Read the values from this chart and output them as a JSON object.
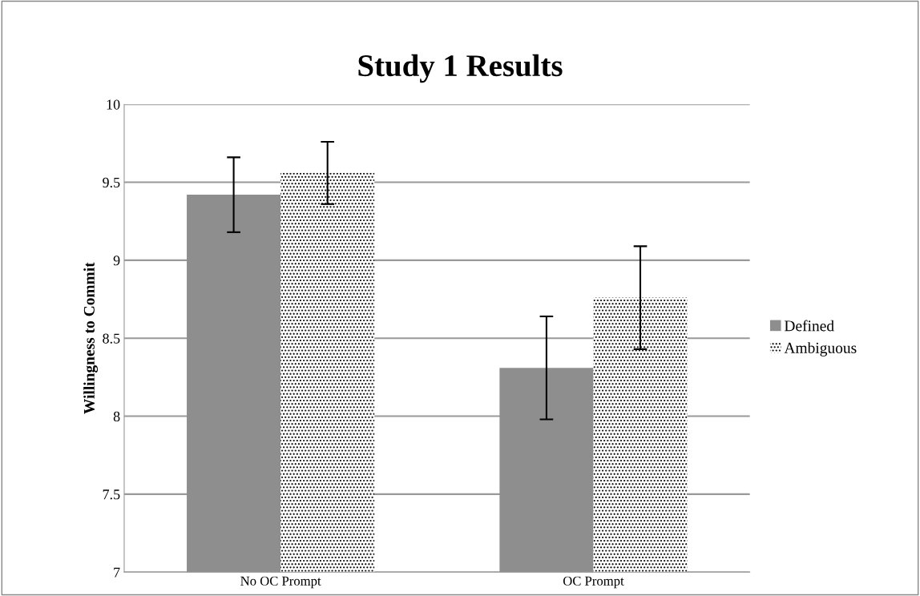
{
  "chart_data": {
    "type": "bar",
    "title": "Study 1 Results",
    "ylabel": "Willingness to Commit",
    "categories": [
      "No OC Prompt",
      "OC Prompt"
    ],
    "series": [
      {
        "name": "Defined",
        "color": "#8e8e8e",
        "values": [
          9.42,
          8.31
        ],
        "errors": [
          0.24,
          0.33
        ]
      },
      {
        "name": "Ambiguous",
        "color": "#ffffff",
        "values": [
          9.56,
          8.76
        ],
        "errors": [
          0.2,
          0.33
        ]
      }
    ],
    "ylim": [
      7,
      10
    ],
    "yticks": [
      7,
      7.5,
      8,
      8.5,
      9,
      9.5,
      10
    ],
    "grid": "y",
    "legend": "right"
  }
}
